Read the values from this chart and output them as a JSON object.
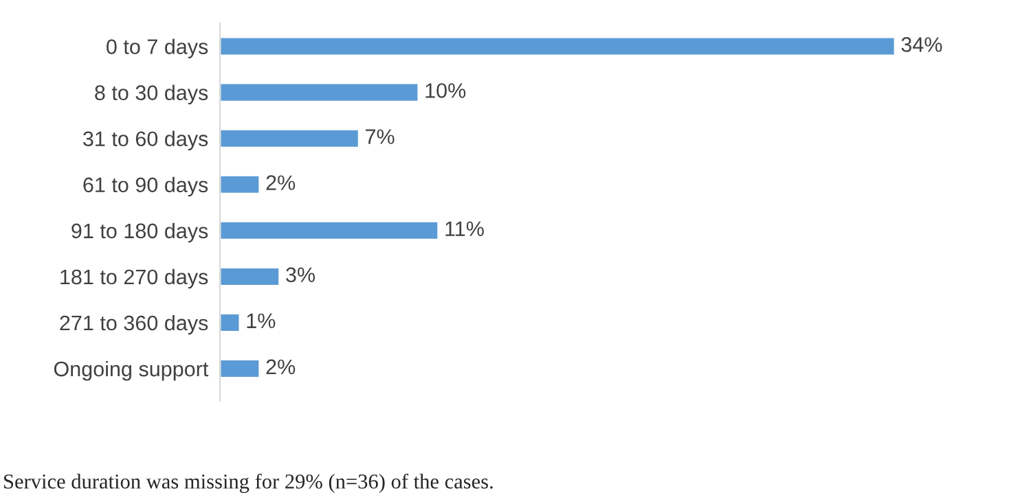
{
  "chart_data": {
    "type": "bar",
    "orientation": "horizontal",
    "categories": [
      "0 to 7 days",
      "8 to 30 days",
      "31 to 60 days",
      "61 to 90 days",
      "91 to 180 days",
      "181 to 270 days",
      "271 to 360 days",
      "Ongoing support"
    ],
    "values": [
      34,
      10,
      7,
      2,
      11,
      3,
      1,
      2
    ],
    "value_labels": [
      "34%",
      "10%",
      "7%",
      "2%",
      "11%",
      "3%",
      "1%",
      "2%"
    ],
    "color": "#5b9bd5",
    "grid": false,
    "legend": false,
    "annotations": [
      "Service duration was missing for 29% (n=36) of the cases."
    ]
  }
}
